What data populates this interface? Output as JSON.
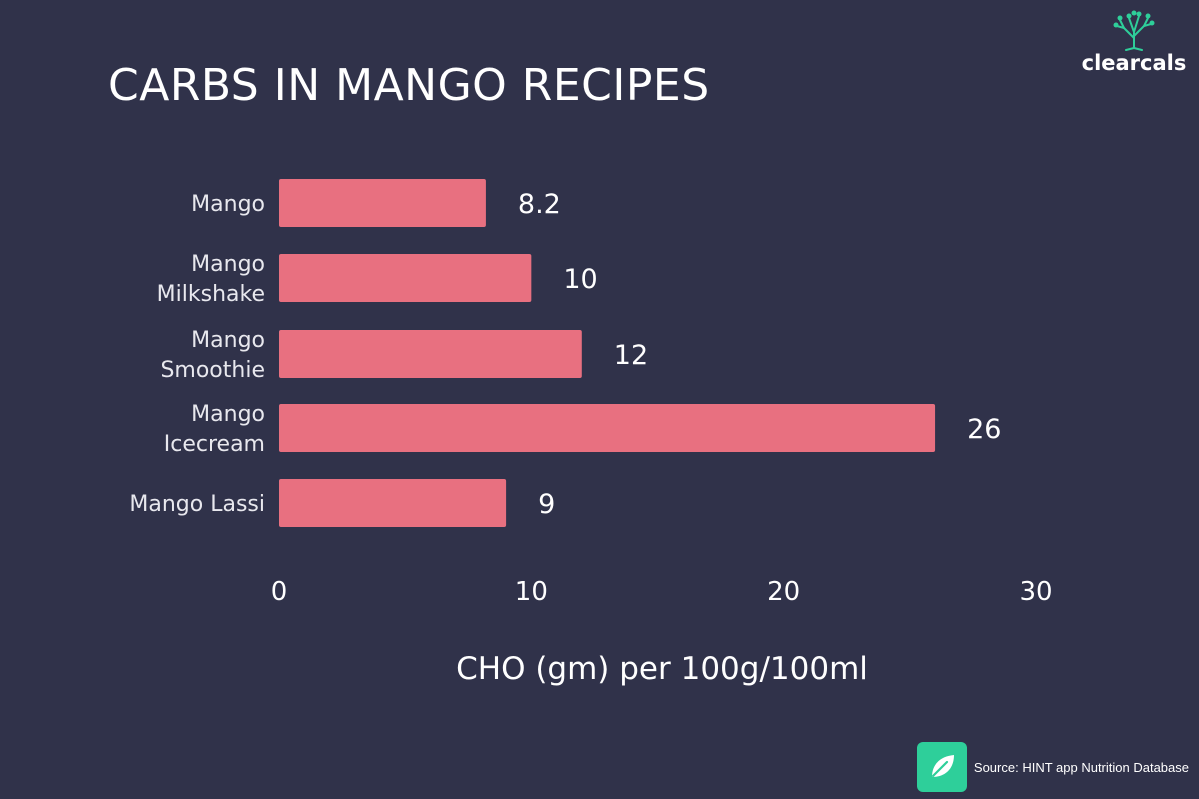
{
  "title": "CARBS IN MANGO RECIPES",
  "logo": {
    "text": "clearcals",
    "icon": "tree-icon"
  },
  "source": {
    "text": "Source: HINT app Nutrition Database",
    "icon": "leaf-icon",
    "icon_color": "#2ecf9a"
  },
  "colors": {
    "background": "#30324a",
    "bar": "#e87080"
  },
  "chart_data": {
    "type": "bar",
    "orientation": "horizontal",
    "categories": [
      [
        "Mango"
      ],
      [
        "Mango",
        "Milkshake"
      ],
      [
        "Mango",
        "Smoothie"
      ],
      [
        "Mango",
        "Icecream"
      ],
      [
        "Mango Lassi"
      ]
    ],
    "values": [
      8.2,
      10,
      12,
      26,
      9
    ],
    "value_labels": [
      "8.2",
      "10",
      "12",
      "26",
      "9"
    ],
    "xlabel": "CHO (gm) per 100g/100ml",
    "xlim": [
      0,
      30
    ],
    "xticks": [
      0,
      10,
      20,
      30
    ],
    "grid": false,
    "legend": "none"
  }
}
